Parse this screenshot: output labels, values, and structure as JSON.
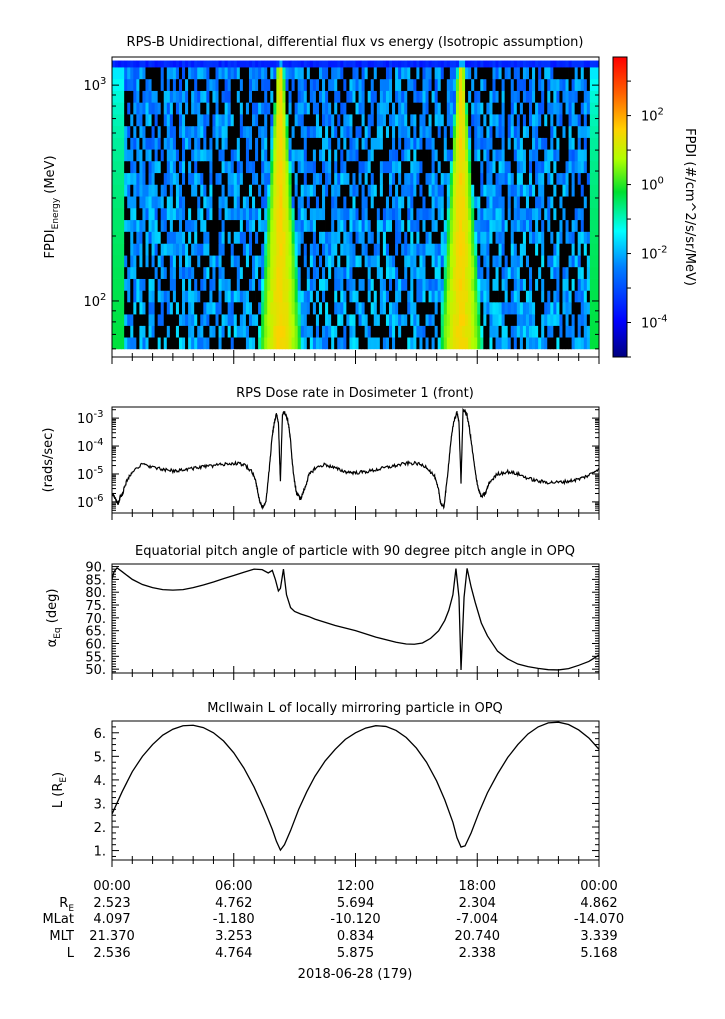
{
  "panels": [
    {
      "title": "RPS-B  Unidirectional, differential flux vs energy (Isotropic assumption)",
      "ylabel_main": "FPDI",
      "ylabel_sub": "Energy",
      "ylabel_tail": " (MeV)",
      "colorbar_label": "FPDI (#/cm^2/s/sr/MeV)"
    },
    {
      "title": "RPS  Dose rate in Dosimeter 1 (front)",
      "ylabel": "(rads/sec)"
    },
    {
      "title": "Equatorial pitch angle of particle with 90 degree pitch angle in OPQ",
      "ylabel_main": "α",
      "ylabel_sub": "Eq",
      "ylabel_tail": " (deg)"
    },
    {
      "title": "McIlwain L of locally mirroring particle in OPQ",
      "ylabel_main": "L (R",
      "ylabel_sub": "E",
      "ylabel_tail": ")"
    }
  ],
  "ephemeris": {
    "times": [
      "00:00",
      "06:00",
      "12:00",
      "18:00",
      "00:00"
    ],
    "rows": [
      {
        "label": "R",
        "label_sub": "E",
        "values": [
          "2.523",
          "4.762",
          "5.694",
          "2.304",
          "4.862"
        ]
      },
      {
        "label": "MLat",
        "values": [
          "4.097",
          "-1.180",
          "-10.120",
          "-7.004",
          "-14.070"
        ]
      },
      {
        "label": "MLT",
        "values": [
          "21.370",
          "3.253",
          "0.834",
          "20.740",
          "3.339"
        ]
      },
      {
        "label": "L",
        "values": [
          "2.536",
          "4.764",
          "5.875",
          "2.338",
          "5.168"
        ]
      }
    ],
    "date": "2018-06-28 (179)"
  },
  "chart_data": [
    {
      "type": "heatmap",
      "title": "RPS-B  Unidirectional, differential flux vs energy (Isotropic assumption)",
      "xlabel": "",
      "ylabel": "FPDI_Energy (MeV)",
      "x_range_hours": [
        0,
        24
      ],
      "y_scale": "log",
      "ylim": [
        55,
        1350
      ],
      "y_ticks": [
        100,
        1000
      ],
      "y_ticklabels": [
        "10^2",
        "10^3"
      ],
      "z_scale": "log",
      "zlim": [
        1e-05,
        5000
      ],
      "colorbar_ticks": [
        0.0001,
        0.01,
        1,
        100
      ],
      "colorbar_ticklabels": [
        "10^-4",
        "10^-2",
        "10^0",
        "10^2"
      ],
      "colorbar_label": "FPDI (#/cm^2/s/sr/MeV)",
      "energy_channels_mev": [
        60,
        68,
        77,
        87,
        99,
        112,
        127,
        144,
        163,
        185,
        210,
        238,
        270,
        306,
        347,
        393,
        446,
        505,
        572,
        648,
        735,
        833,
        944,
        1070,
        1213,
        1300
      ],
      "time_bins": 160,
      "flux_enhancements": [
        {
          "center_hour": 8.3,
          "low_energy_half_width_hours": 1.1,
          "high_energy_half_width_hours": 0.15,
          "peak_flux": 40
        },
        {
          "center_hour": 17.2,
          "low_energy_half_width_hours": 1.1,
          "high_energy_half_width_hours": 0.15,
          "peak_flux": 40
        }
      ],
      "background_flux": 0.005,
      "top_row_flux": 0.0003
    },
    {
      "type": "line",
      "title": "RPS  Dose rate in Dosimeter 1 (front)",
      "xlabel": "",
      "ylabel": "(rads/sec)",
      "y_scale": "log",
      "ylim": [
        4e-07,
        0.0025
      ],
      "y_ticks": [
        1e-06,
        1e-05,
        0.0001,
        0.001
      ],
      "y_ticklabels": [
        "10^-6",
        "10^-5",
        "10^-4",
        "10^-3"
      ],
      "series": [
        {
          "x": [
            0.0,
            0.1,
            0.2,
            0.3,
            0.4,
            0.5,
            0.7,
            1.0,
            1.5,
            2.0,
            2.5,
            3.0,
            3.5,
            4.0,
            4.5,
            5.0,
            5.5,
            6.0,
            6.5,
            6.9,
            7.1,
            7.2,
            7.3,
            7.45,
            7.6,
            7.75,
            7.9,
            8.0,
            8.1,
            8.2,
            8.3,
            8.4,
            8.5,
            8.6,
            8.7,
            8.8,
            8.9,
            9.0,
            9.1,
            9.3,
            9.5,
            9.7,
            10.0,
            10.5,
            11.0,
            11.5,
            12.0,
            12.5,
            13.0,
            13.5,
            14.0,
            14.5,
            15.0,
            15.5,
            15.9,
            16.1,
            16.2,
            16.35,
            16.5,
            16.7,
            16.85,
            17.0,
            17.1,
            17.2,
            17.3,
            17.4,
            17.5,
            17.6,
            17.75,
            17.9,
            18.05,
            18.2,
            18.4,
            18.6,
            19.0,
            19.5,
            20.0,
            20.5,
            21.0,
            21.5,
            22.0,
            22.5,
            23.0,
            23.5,
            24.0
          ],
          "y": [
            2e-06,
            1.6e-06,
            1.1e-06,
            8e-07,
            1.5e-06,
            1.8e-06,
            5e-06,
            1.3e-05,
            2.2e-05,
            1.8e-05,
            1.4e-05,
            1.3e-05,
            1.4e-05,
            1.6e-05,
            1.8e-05,
            2e-05,
            2.2e-05,
            2.4e-05,
            2.2e-05,
            1.2e-05,
            5e-06,
            2e-06,
            9e-07,
            6e-07,
            1.2e-06,
            1.5e-05,
            0.00025,
            0.0007,
            0.0014,
            0.0007,
            5e-06,
            0.0015,
            0.0016,
            0.0012,
            0.0006,
            0.00015,
            2e-05,
            5e-06,
            2e-06,
            1.3e-06,
            3e-06,
            9e-06,
            1.6e-05,
            2.2e-05,
            1.6e-05,
            1.2e-05,
            1.1e-05,
            1.2e-05,
            1.4e-05,
            1.7e-05,
            2e-05,
            2.4e-05,
            2.4e-05,
            1.8e-05,
            8e-06,
            2.5e-06,
            9e-07,
            6e-07,
            5e-06,
            0.00015,
            0.0008,
            0.0016,
            0.0007,
            5e-06,
            0.0018,
            0.0018,
            0.0012,
            0.0005,
            8e-05,
            1.2e-05,
            3e-06,
            1.5e-06,
            2e-06,
            5e-06,
            1e-05,
            1.2e-05,
            1e-05,
            7e-06,
            5.5e-06,
            5e-06,
            5e-06,
            5.5e-06,
            6.5e-06,
            9e-06,
            1.6e-05
          ]
        }
      ]
    },
    {
      "type": "line",
      "title": "Equatorial pitch angle of particle with 90 degree pitch angle in OPQ",
      "xlabel": "",
      "ylabel": "αEq (deg)",
      "ylim": [
        48.5,
        91
      ],
      "y_ticks": [
        50,
        55,
        60,
        65,
        70,
        75,
        80,
        85,
        90
      ],
      "y_ticklabels": [
        "50.",
        "55.",
        "60.",
        "65.",
        "70.",
        "75.",
        "80.",
        "85.",
        "90."
      ],
      "series": [
        {
          "x": [
            0.0,
            0.1,
            0.25,
            0.5,
            1.0,
            1.5,
            2.0,
            2.5,
            3.0,
            3.5,
            4.0,
            4.5,
            5.0,
            5.5,
            6.0,
            6.5,
            7.0,
            7.4,
            7.7,
            7.9,
            8.05,
            8.2,
            8.3,
            8.45,
            8.6,
            8.8,
            9.0,
            9.3,
            9.7,
            10.0,
            11.0,
            12.0,
            13.0,
            14.0,
            14.5,
            14.9,
            15.3,
            15.7,
            16.1,
            16.4,
            16.6,
            16.8,
            16.95,
            17.1,
            17.2,
            17.35,
            17.5,
            17.7,
            17.9,
            18.2,
            18.5,
            19.0,
            19.5,
            20.0,
            20.5,
            21.0,
            21.5,
            22.0,
            22.5,
            23.0,
            23.5,
            24.0
          ],
          "y": [
            85,
            88,
            89.5,
            88,
            85,
            83,
            81.8,
            81,
            80.8,
            81,
            81.8,
            82.8,
            84,
            85.3,
            86.5,
            87.8,
            89,
            88.8,
            87.5,
            88.5,
            85,
            80.5,
            81.5,
            89,
            79,
            74,
            72.5,
            71.5,
            70.5,
            69.5,
            67,
            65,
            62.5,
            60.5,
            59.8,
            59.7,
            60.2,
            62,
            65,
            69,
            73,
            79,
            89.2,
            78,
            49.7,
            78,
            89.3,
            82,
            76,
            68,
            63,
            57,
            54,
            52,
            51,
            50.3,
            49.8,
            49.7,
            50.2,
            51.5,
            53,
            55.5
          ]
        }
      ]
    },
    {
      "type": "line",
      "title": "McIlwain L of locally mirroring particle in OPQ",
      "xlabel": "",
      "ylabel": "L (RE)",
      "ylim": [
        0.6,
        6.5
      ],
      "y_ticks": [
        1,
        2,
        3,
        4,
        5,
        6
      ],
      "y_ticklabels": [
        "1.",
        "2.",
        "3.",
        "4.",
        "5.",
        "6."
      ],
      "series": [
        {
          "x": [
            0.0,
            0.5,
            1.0,
            1.5,
            2.0,
            2.5,
            3.0,
            3.5,
            4.0,
            4.5,
            5.0,
            5.5,
            6.0,
            6.5,
            7.0,
            7.5,
            7.9,
            8.1,
            8.3,
            8.5,
            8.8,
            9.2,
            9.6,
            10.0,
            10.5,
            11.0,
            11.5,
            12.0,
            12.5,
            13.0,
            13.5,
            14.0,
            14.5,
            15.0,
            15.5,
            16.0,
            16.4,
            16.8,
            17.0,
            17.2,
            17.4,
            17.7,
            18.1,
            18.5,
            19.0,
            19.5,
            20.0,
            20.5,
            21.0,
            21.5,
            22.0,
            22.5,
            23.0,
            23.5,
            24.0
          ],
          "y": [
            2.55,
            3.5,
            4.35,
            5.0,
            5.5,
            5.9,
            6.15,
            6.3,
            6.32,
            6.22,
            6.0,
            5.65,
            5.15,
            4.5,
            3.7,
            2.75,
            1.9,
            1.4,
            1.02,
            1.25,
            1.85,
            2.75,
            3.5,
            4.15,
            4.8,
            5.3,
            5.72,
            6.0,
            6.2,
            6.3,
            6.27,
            6.1,
            5.8,
            5.35,
            4.75,
            3.95,
            3.15,
            2.2,
            1.55,
            1.15,
            1.2,
            1.75,
            2.65,
            3.45,
            4.25,
            4.95,
            5.5,
            5.95,
            6.25,
            6.42,
            6.45,
            6.35,
            6.12,
            5.78,
            5.3
          ]
        }
      ]
    }
  ]
}
